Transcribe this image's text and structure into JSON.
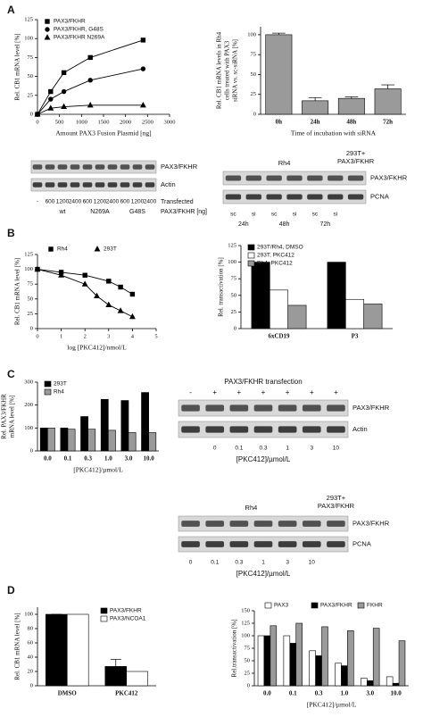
{
  "panels": [
    "A",
    "B",
    "C",
    "D"
  ],
  "chart_data": [
    {
      "type": "scatter",
      "xlabel": "Amount PAX3 Fusion Plasmid [ng]",
      "ylabel": [
        "Rel. CB1 mRNA level [%]"
      ],
      "xlim": [
        0,
        3000
      ],
      "xticks": [
        0,
        500,
        1000,
        1500,
        2000,
        2500,
        3000
      ],
      "ylim": [
        0,
        125
      ],
      "yticks": [
        0,
        25,
        50,
        75,
        100,
        125
      ],
      "legend": "upper left",
      "series": [
        {
          "name": "PAX3/FKHR",
          "color": "#000000",
          "marker": "square",
          "x": [
            0,
            300,
            600,
            1200,
            2400
          ],
          "values": [
            0,
            30,
            55,
            75,
            98
          ]
        },
        {
          "name": "PAX3/FKHR, G48S",
          "color": "#000000",
          "marker": "circle",
          "x": [
            0,
            300,
            600,
            1200,
            2400
          ],
          "values": [
            0,
            20,
            30,
            45,
            60
          ]
        },
        {
          "name": "PAX3/FKHR N269A",
          "color": "#000000",
          "marker": "triangle",
          "x": [
            0,
            300,
            600,
            1200,
            2400
          ],
          "values": [
            0,
            8,
            10,
            12,
            12
          ]
        }
      ]
    },
    {
      "type": "bar",
      "xlabel": "Time of incubation with siRNA",
      "ylabel": [
        "Rel. CB1 mRNA levels in Rh4",
        "cells treated with PAX3",
        "siRNA vs. sc-siRNA [%]"
      ],
      "categories": [
        "0h",
        "24h",
        "48h",
        "72h"
      ],
      "values": [
        100,
        17,
        20,
        32
      ],
      "errors": [
        2,
        4,
        2,
        5
      ],
      "color": "#9a9a9a",
      "ylim": [
        0,
        110
      ],
      "yticks": [
        0,
        25,
        50,
        75,
        100
      ]
    },
    {
      "type": "scatter",
      "xlabel": "log [PKC412]/nmol/L",
      "ylabel": [
        "Rel. CB1 mRNA level [%]"
      ],
      "xlim": [
        0,
        5
      ],
      "xticks": [
        0,
        1,
        2,
        3,
        4,
        5
      ],
      "ylim": [
        0,
        125
      ],
      "yticks": [
        0,
        25,
        50,
        75,
        100,
        125
      ],
      "legend": "top",
      "series": [
        {
          "name": "Rh4",
          "color": "#000000",
          "marker": "square",
          "x": [
            0,
            1,
            2,
            3,
            3.5,
            4
          ],
          "values": [
            100,
            95,
            90,
            80,
            70,
            58
          ]
        },
        {
          "name": "293T",
          "color": "#000000",
          "marker": "triangle",
          "x": [
            0,
            1,
            2,
            2.5,
            3,
            3.5,
            4
          ],
          "values": [
            100,
            90,
            75,
            55,
            40,
            30,
            20
          ]
        }
      ]
    },
    {
      "type": "bar",
      "ylabel": [
        "Rel. transactivation [%]"
      ],
      "categories": [
        "6xCD19",
        "P3"
      ],
      "ylim": [
        0,
        125
      ],
      "yticks": [
        0,
        25,
        50,
        75,
        100,
        125
      ],
      "legend": "upper left",
      "series": [
        {
          "name": "293T/Rh4, DMSO",
          "color": "#000000",
          "values": [
            100,
            100
          ]
        },
        {
          "name": "293T, PKC412",
          "color": "#ffffff",
          "values": [
            58,
            44
          ]
        },
        {
          "name": "Rh4, PKC412",
          "color": "#9a9a9a",
          "values": [
            35,
            37
          ]
        }
      ]
    },
    {
      "type": "bar",
      "xlabel": "[PKC412]/µmol/L",
      "ylabel": [
        "Rel. PAX3/FKHR",
        "mRNA level [%]"
      ],
      "categories": [
        "0.0",
        "0.1",
        "0.3",
        "1.0",
        "3.0",
        "10.0"
      ],
      "ylim": [
        0,
        300
      ],
      "yticks": [
        0,
        100,
        200,
        300
      ],
      "legend": "upper left",
      "series": [
        {
          "name": "293T",
          "color": "#000000",
          "values": [
            100,
            100,
            150,
            225,
            220,
            255
          ]
        },
        {
          "name": "Rh4",
          "color": "#9a9a9a",
          "values": [
            100,
            95,
            95,
            90,
            80,
            80
          ]
        }
      ]
    },
    {
      "type": "bar",
      "ylabel": [
        "Rel. CB1 mRNA level [%]"
      ],
      "categories": [
        "DMSO",
        "PKC412"
      ],
      "ylim": [
        0,
        110
      ],
      "yticks": [
        0,
        20,
        40,
        60,
        80,
        100
      ],
      "legend": "upper right",
      "series": [
        {
          "name": "PAX3/FKHR",
          "color": "#000000",
          "values": [
            100,
            27
          ],
          "errors": [
            0,
            10
          ]
        },
        {
          "name": "PAX3/NCOA1",
          "color": "#ffffff",
          "values": [
            100,
            20
          ]
        }
      ]
    },
    {
      "type": "bar",
      "xlabel": "[PKC412]/µmol/L",
      "ylabel": [
        "Rel.transactivation [%]"
      ],
      "categories": [
        "0.0",
        "0.1",
        "0.3",
        "1.0",
        "3.0",
        "10.0"
      ],
      "ylim": [
        0,
        150
      ],
      "yticks": [
        0,
        25,
        50,
        75,
        100,
        125,
        150
      ],
      "legend": "top",
      "series": [
        {
          "name": "PAX3",
          "color": "#ffffff",
          "values": [
            100,
            100,
            70,
            45,
            15,
            18
          ]
        },
        {
          "name": "PAX3/FKHR",
          "color": "#000000",
          "values": [
            100,
            85,
            60,
            40,
            10,
            5
          ]
        },
        {
          "name": "FKHR",
          "color": "#9a9a9a",
          "values": [
            120,
            125,
            118,
            110,
            115,
            90
          ]
        }
      ]
    }
  ],
  "blots": [
    {
      "row_labels": [
        "PAX3/FKHR",
        "Actin"
      ],
      "lanes": [
        "-",
        "600",
        "1200",
        "2400",
        "600",
        "1200",
        "2400",
        "600",
        "1200",
        "2400"
      ],
      "groups": [
        "wt",
        "N269A",
        "G48S"
      ],
      "caption": [
        "Transfected",
        "PAX3/FKHR [ng]"
      ]
    },
    {
      "top_labels": [
        "Rh4"
      ],
      "top_note": [
        "293T+",
        "PAX3/FKHR"
      ],
      "row_labels": [
        "PAX3/FKHR",
        "PCNA"
      ],
      "lanes": [
        "sc",
        "si",
        "sc",
        "si",
        "sc",
        "si"
      ],
      "groups": [
        "24h",
        "48h",
        "72h"
      ]
    },
    {
      "title": "PAX3/FKHR transfection",
      "above": [
        "-",
        "+",
        "+",
        "+",
        "+",
        "+",
        "+"
      ],
      "row_labels": [
        "PAX3/FKHR",
        "Actin"
      ],
      "lanes": [
        "0",
        "0.1",
        "0.3",
        "1",
        "3",
        "10"
      ],
      "caption": [
        "[PKC412]/µmol/L"
      ]
    },
    {
      "top_labels": [
        "Rh4"
      ],
      "top_note": [
        "293T+",
        "PAX3/FKHR"
      ],
      "row_labels": [
        "PAX3/FKHR",
        "PCNA"
      ],
      "lanes": [
        "0",
        "0.1",
        "0.3",
        "1",
        "3",
        "10"
      ],
      "caption": [
        "[PKC412]/µmol/L"
      ]
    }
  ]
}
